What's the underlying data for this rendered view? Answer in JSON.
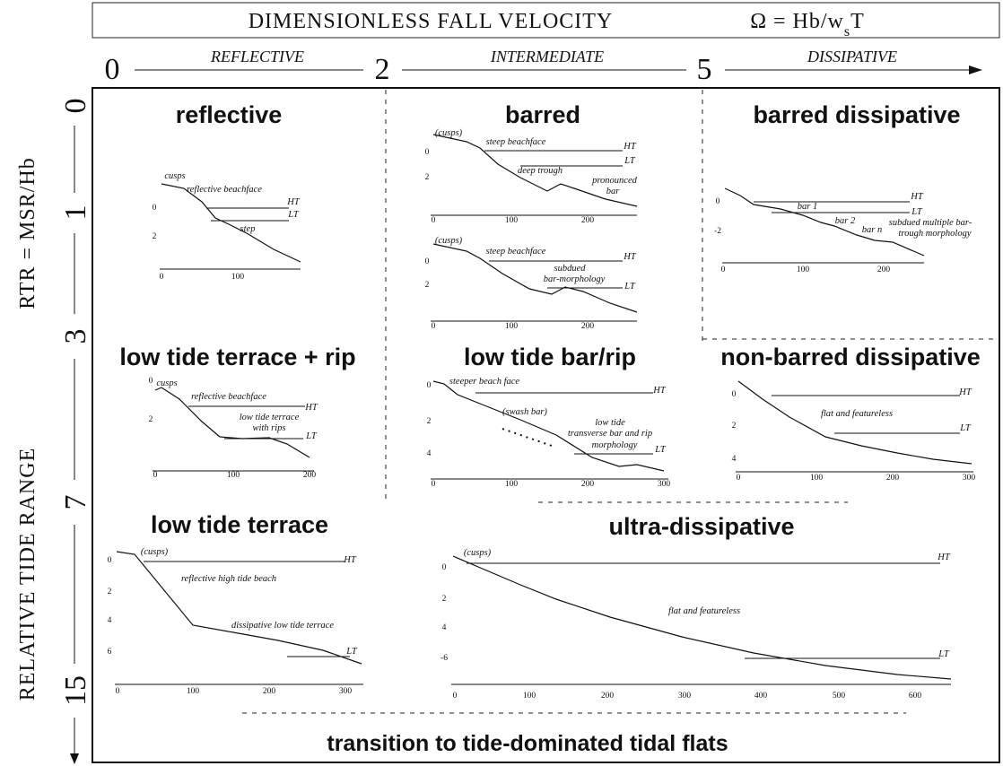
{
  "header": {
    "title": "DIMENSIONLESS FALL VELOCITY",
    "formula": "Ω = Hb/w",
    "formula_sub": "s",
    "formula_end": "T"
  },
  "omega_axis": {
    "ticks": [
      "0",
      "2",
      "5"
    ],
    "zones": [
      "REFLECTIVE",
      "INTERMEDIATE",
      "DISSIPATIVE"
    ]
  },
  "rtr_axis": {
    "label": "RELATIVE TIDE RANGE",
    "formula": "RTR = MSR/Hb",
    "ticks": [
      "0",
      "1",
      "3",
      "7",
      "15"
    ]
  },
  "panels": [
    {
      "title": "reflective",
      "profiles": [
        {
          "annotations": [
            "cusps",
            "reflective beachface",
            "HT",
            "LT",
            "step"
          ],
          "yticks": [
            "0",
            "2"
          ],
          "xticks": [
            "0",
            "100"
          ]
        }
      ]
    },
    {
      "title": "barred",
      "profiles": [
        {
          "annotations": [
            "(cusps)",
            "steep beachface",
            "HT",
            "LT",
            "deep trough",
            "pronounced",
            "bar"
          ],
          "yticks": [
            "0",
            "2"
          ],
          "xticks": [
            "0",
            "100",
            "200"
          ]
        },
        {
          "annotations": [
            "(cusps)",
            "steep beachface",
            "HT",
            "subdued",
            "bar-morphology",
            "LT"
          ],
          "yticks": [
            "0",
            "2"
          ],
          "xticks": [
            "0",
            "100",
            "200"
          ]
        }
      ]
    },
    {
      "title": "barred dissipative",
      "profiles": [
        {
          "annotations": [
            "HT",
            "LT",
            "bar 1",
            "bar 2",
            "bar n",
            "subdued multiple bar-",
            "trough morphology"
          ],
          "yticks": [
            "0",
            "-2"
          ],
          "xticks": [
            "0",
            "100",
            "200"
          ]
        }
      ]
    },
    {
      "title": "low tide terrace + rip",
      "profiles": [
        {
          "annotations": [
            "cusps",
            "reflective beachface",
            "HT",
            "low tide terrace",
            "with rips",
            "LT"
          ],
          "yticks": [
            "0",
            "2"
          ],
          "xticks": [
            "0",
            "100",
            "200"
          ]
        }
      ]
    },
    {
      "title": "low tide bar/rip",
      "profiles": [
        {
          "annotations": [
            "steeper beach face",
            "HT",
            "(swash bar)",
            "low tide",
            "transverse bar and rip",
            "morphology",
            "LT"
          ],
          "yticks": [
            "0",
            "2",
            "4"
          ],
          "xticks": [
            "0",
            "100",
            "200",
            "300"
          ]
        }
      ]
    },
    {
      "title": "non-barred dissipative",
      "profiles": [
        {
          "annotations": [
            "HT",
            "flat and featureless",
            "LT"
          ],
          "yticks": [
            "0",
            "2",
            "4"
          ],
          "xticks": [
            "0",
            "100",
            "200",
            "300"
          ]
        }
      ]
    },
    {
      "title": "low tide terrace",
      "profiles": [
        {
          "annotations": [
            "(cusps)",
            "HT",
            "reflective high tide beach",
            "dissipative low tide terrace",
            "LT"
          ],
          "yticks": [
            "0",
            "2",
            "4",
            "6"
          ],
          "xticks": [
            "0",
            "100",
            "200",
            "300"
          ]
        }
      ]
    },
    {
      "title": "ultra-dissipative",
      "profiles": [
        {
          "annotations": [
            "(cusps)",
            "HT",
            "flat and featureless",
            "LT"
          ],
          "yticks": [
            "0",
            "2",
            "4",
            "-6"
          ],
          "xticks": [
            "0",
            "100",
            "200",
            "300",
            "400",
            "500",
            "600"
          ]
        }
      ]
    }
  ],
  "footer": "transition to tide-dominated tidal flats"
}
